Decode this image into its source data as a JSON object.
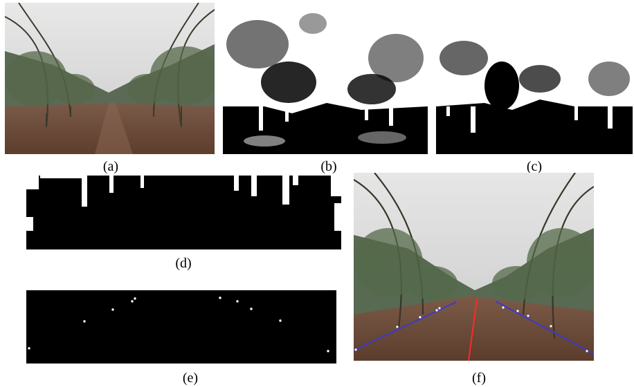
{
  "figure": {
    "captions": {
      "a": "(a)",
      "b": "(b)",
      "c": "(c)",
      "d": "(d)",
      "e": "(e)",
      "f": "(f)"
    }
  },
  "colors": {
    "sky": "#d9dadb",
    "soil": "#6b4a38",
    "foliage": "#4a5a40",
    "navigation_line": "#ff2a2a",
    "row_lines": "#3a3ad0",
    "feature_points": "#ffffff"
  }
}
